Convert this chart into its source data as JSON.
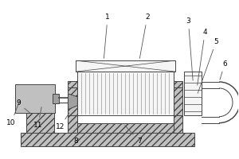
{
  "bg_color": "#ffffff",
  "lc": "#444444",
  "fill_white": "#f5f5f5",
  "fill_light": "#e0e0e0",
  "fill_mid": "#c0c0c0",
  "fill_dark": "#a0a0a0",
  "hatch_diag": "////",
  "hatch_vert": "||||",
  "figw": 3.0,
  "figh": 2.0,
  "dpi": 100
}
